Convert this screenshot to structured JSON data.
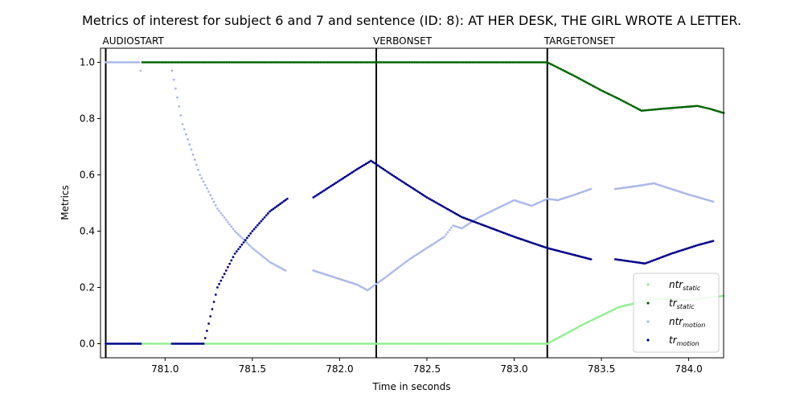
{
  "chart_data": {
    "type": "scatter",
    "title": "Metrics of interest for subject 6 and 7 and sentence (ID: 8): AT HER DESK, THE GIRL WROTE A LETTER.",
    "xlabel": "Time in seconds",
    "ylabel": "Metrics",
    "xlim": [
      780.63,
      784.2
    ],
    "ylim": [
      -0.05,
      1.05
    ],
    "xticks": [
      781.0,
      781.5,
      782.0,
      782.5,
      783.0,
      783.5,
      784.0
    ],
    "xtick_labels": [
      "781.0",
      "781.5",
      "782.0",
      "782.5",
      "783.0",
      "783.5",
      "784.0"
    ],
    "yticks": [
      0.0,
      0.2,
      0.4,
      0.6,
      0.8,
      1.0
    ],
    "ytick_labels": [
      "0.0",
      "0.2",
      "0.4",
      "0.6",
      "0.8",
      "1.0"
    ],
    "grid": false,
    "legend_position": "lower-right",
    "events": [
      {
        "label": "AUDIOSTART",
        "x": 780.66
      },
      {
        "label": "VERBONSET",
        "x": 782.21
      },
      {
        "label": "TARGETONSET",
        "x": 783.19
      }
    ],
    "series": [
      {
        "name": "ntr_static",
        "legend_main": "ntr",
        "legend_sub": "static",
        "color": "#90ee90",
        "segments": [
          [
            [
              780.66,
              0.0
            ],
            [
              783.19,
              0.0
            ]
          ],
          [
            [
              783.19,
              0.0
            ],
            [
              783.4,
              0.07
            ],
            [
              783.6,
              0.13
            ],
            [
              783.8,
              0.16
            ],
            [
              784.0,
              0.155
            ],
            [
              784.2,
              0.17
            ]
          ]
        ]
      },
      {
        "name": "tr_static",
        "legend_main": "tr",
        "legend_sub": "static",
        "color": "#006400",
        "segments": [
          [
            [
              780.87,
              1.0
            ],
            [
              783.19,
              1.0
            ]
          ],
          [
            [
              783.19,
              1.0
            ],
            [
              783.35,
              0.95
            ],
            [
              783.5,
              0.9
            ],
            [
              783.6,
              0.87
            ],
            [
              783.73,
              0.828
            ],
            [
              783.85,
              0.835
            ],
            [
              783.95,
              0.84
            ],
            [
              784.05,
              0.845
            ],
            [
              784.12,
              0.835
            ],
            [
              784.2,
              0.82
            ]
          ]
        ]
      },
      {
        "name": "ntr_motion",
        "legend_main": "ntr",
        "legend_sub": "motion",
        "color": "#aab8ea",
        "segments": [
          [
            [
              780.66,
              1.0
            ],
            [
              780.85,
              1.0
            ],
            [
              780.86,
              0.97
            ]
          ],
          [
            [
              781.04,
              0.97
            ],
            [
              781.1,
              0.78
            ],
            [
              781.2,
              0.6
            ],
            [
              781.3,
              0.48
            ],
            [
              781.4,
              0.4
            ],
            [
              781.5,
              0.34
            ],
            [
              781.6,
              0.29
            ],
            [
              781.69,
              0.26
            ]
          ],
          [
            [
              781.85,
              0.26
            ],
            [
              782.0,
              0.23
            ],
            [
              782.1,
              0.21
            ],
            [
              782.16,
              0.19
            ],
            [
              782.25,
              0.23
            ],
            [
              782.4,
              0.3
            ],
            [
              782.6,
              0.38
            ],
            [
              782.65,
              0.42
            ],
            [
              782.7,
              0.41
            ],
            [
              782.8,
              0.45
            ],
            [
              783.0,
              0.51
            ],
            [
              783.05,
              0.5
            ],
            [
              783.1,
              0.49
            ],
            [
              783.19,
              0.515
            ],
            [
              783.25,
              0.51
            ],
            [
              783.35,
              0.53
            ],
            [
              783.44,
              0.55
            ]
          ],
          [
            [
              783.58,
              0.55
            ],
            [
              783.7,
              0.56
            ],
            [
              783.8,
              0.57
            ],
            [
              783.9,
              0.55
            ],
            [
              784.0,
              0.53
            ],
            [
              784.14,
              0.505
            ]
          ]
        ]
      },
      {
        "name": "tr_motion",
        "legend_main": "tr",
        "legend_sub": "motion",
        "color": "#00008b",
        "segments": [
          [
            [
              780.66,
              0.0
            ],
            [
              780.86,
              0.0
            ]
          ],
          [
            [
              781.04,
              0.0
            ],
            [
              781.22,
              0.0
            ]
          ],
          [
            [
              781.23,
              0.02
            ],
            [
              781.3,
              0.2
            ],
            [
              781.4,
              0.32
            ],
            [
              781.5,
              0.4
            ],
            [
              781.6,
              0.47
            ],
            [
              781.7,
              0.515
            ]
          ],
          [
            [
              781.85,
              0.52
            ],
            [
              782.0,
              0.58
            ],
            [
              782.1,
              0.62
            ],
            [
              782.18,
              0.65
            ],
            [
              782.3,
              0.6
            ],
            [
              782.5,
              0.52
            ],
            [
              782.7,
              0.45
            ],
            [
              783.0,
              0.38
            ],
            [
              783.19,
              0.34
            ],
            [
              783.44,
              0.3
            ]
          ],
          [
            [
              783.58,
              0.3
            ],
            [
              783.75,
              0.285
            ],
            [
              783.9,
              0.32
            ],
            [
              784.05,
              0.35
            ],
            [
              784.14,
              0.365
            ]
          ]
        ]
      }
    ]
  }
}
